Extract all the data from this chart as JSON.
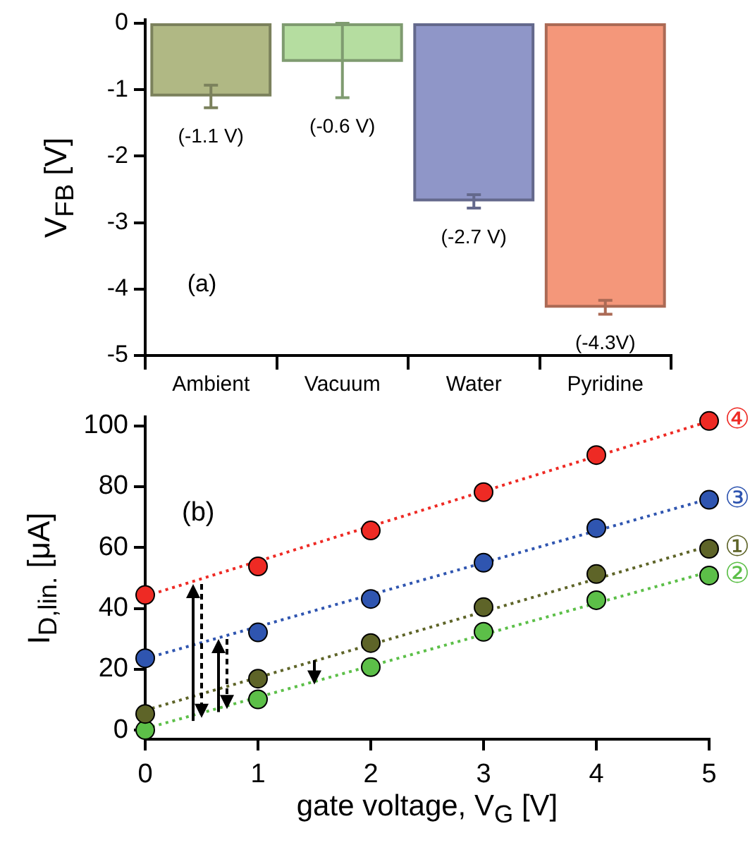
{
  "chart_data": [
    {
      "type": "bar",
      "ylabel": "V$_{FB}$ [V]",
      "categories": [
        "Ambient",
        "Vacuum",
        "Water",
        "Pyridine"
      ],
      "values": [
        -1.08,
        -0.56,
        -2.66,
        -4.26
      ],
      "colors": [
        "#b0b884",
        "#b5dda0",
        "#8f96c8",
        "#f4977a"
      ],
      "errors": [
        [
          -1.27,
          -0.93
        ],
        [
          -1.12,
          0
        ],
        [
          -2.78,
          -2.58
        ],
        [
          -4.38,
          -4.17
        ]
      ],
      "value_labels": [
        "(-1.1 V)",
        "(-0.6 V)",
        "(-2.7 V)",
        "(-4.3V)"
      ],
      "ylim": [
        -5,
        0.05
      ],
      "yticks": [
        0,
        -1,
        -2,
        -3,
        -4,
        -5
      ],
      "grid": false,
      "legend": false,
      "annotations": [
        "(a)"
      ]
    },
    {
      "type": "scatter",
      "xlabel": "gate voltage, V$_{G}$ [V]",
      "ylabel": "I$_{D,lin.}$ [μA]",
      "xlim": [
        0,
        5
      ],
      "ylim": [
        -3,
        103
      ],
      "xticks": [
        0,
        1,
        2,
        3,
        4,
        5
      ],
      "yticks": [
        0,
        20,
        40,
        60,
        80,
        100
      ],
      "grid": false,
      "legend": false,
      "marker": "circle",
      "annotations": [
        "(b)"
      ],
      "series": [
        {
          "name": "④",
          "color": "#ee2a24",
          "x": [
            0,
            1,
            2,
            3,
            4,
            5
          ],
          "values": [
            44.4,
            53.8,
            65.6,
            78.2,
            90.4,
            101.6
          ]
        },
        {
          "name": "③",
          "color": "#2f55b0",
          "x": [
            0,
            1,
            2,
            3,
            4,
            5
          ],
          "values": [
            23.6,
            32.1,
            43.1,
            55.0,
            66.4,
            75.7
          ]
        },
        {
          "name": "①",
          "color": "#5e6428",
          "x": [
            0,
            1,
            2,
            3,
            4,
            5
          ],
          "values": [
            5.3,
            16.9,
            28.6,
            40.4,
            51.3,
            59.6
          ]
        },
        {
          "name": "②",
          "color": "#5cbf48",
          "x": [
            0,
            1,
            2,
            3,
            4,
            5
          ],
          "values": [
            0,
            10.1,
            20.7,
            32.3,
            42.7,
            50.8
          ]
        },
        {
          "type": "line",
          "color": "#ee2a24",
          "x": [
            0,
            5
          ],
          "values": [
            44,
            101.5
          ],
          "line_style": "dotted",
          "marker": "none"
        },
        {
          "type": "line",
          "color": "#2f55b0",
          "x": [
            0,
            5
          ],
          "values": [
            23.5,
            76
          ],
          "line_style": "dotted",
          "marker": "none"
        },
        {
          "type": "line",
          "color": "#5e6428",
          "x": [
            0,
            5
          ],
          "values": [
            6.5,
            60.5
          ],
          "line_style": "dotted",
          "marker": "none"
        },
        {
          "type": "line",
          "color": "#5cbf48",
          "x": [
            0,
            5
          ],
          "values": [
            0.5,
            52
          ],
          "line_style": "dotted",
          "marker": "none"
        }
      ]
    }
  ]
}
